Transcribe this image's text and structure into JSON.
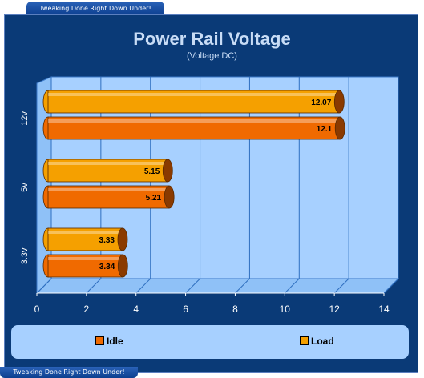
{
  "banner": {
    "text": "Tweaking Done Right Down Under!"
  },
  "colors": {
    "frame": "#0a3a77",
    "plot": "#a7d0ff",
    "idle": "#f06a00",
    "load": "#f5a000",
    "axis_text": "#ffffff"
  },
  "chart_data": {
    "type": "bar",
    "orientation": "horizontal",
    "title": "Power Rail Voltage",
    "subtitle": "(Voltage DC)",
    "xlabel": "",
    "ylabel": "",
    "categories": [
      "12v",
      "5v",
      "3.3v"
    ],
    "series": [
      {
        "name": "Load",
        "values": [
          12.07,
          5.15,
          3.33
        ]
      },
      {
        "name": "Idle",
        "values": [
          12.1,
          5.21,
          3.34
        ]
      }
    ],
    "xlim": [
      0,
      14
    ],
    "xticks": [
      0,
      2,
      4,
      6,
      8,
      10,
      12,
      14
    ],
    "grid": true,
    "legend": "bottom",
    "legend_order": [
      "Idle",
      "Load"
    ]
  }
}
